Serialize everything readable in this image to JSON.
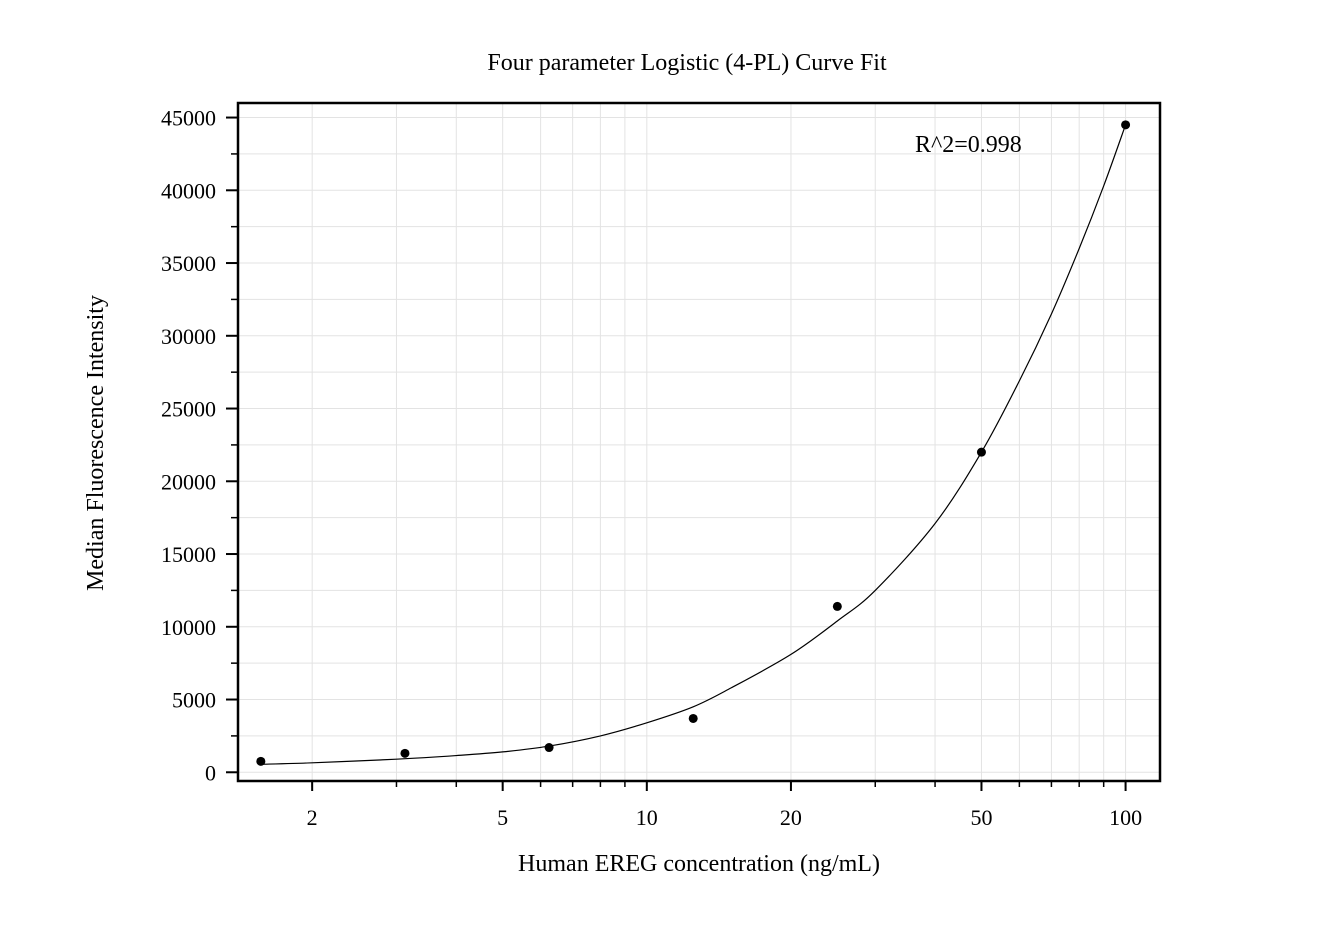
{
  "chart_data": {
    "type": "scatter",
    "title": "Four parameter Logistic (4-PL) Curve Fit",
    "xlabel": "Human EREG concentration (ng/mL)",
    "ylabel": "Median Fluorescence Intensity",
    "xscale": "log",
    "xlim": [
      1.4,
      118
    ],
    "ylim": [
      -600,
      46000
    ],
    "x_ticks": [
      2,
      5,
      10,
      20,
      50,
      100
    ],
    "x_tick_labels": [
      "2",
      "5",
      "10",
      "20",
      "50",
      "100"
    ],
    "y_ticks": [
      0,
      5000,
      10000,
      15000,
      20000,
      25000,
      30000,
      35000,
      40000,
      45000
    ],
    "y_tick_labels": [
      "0",
      "5000",
      "10000",
      "15000",
      "20000",
      "25000",
      "30000",
      "35000",
      "40000",
      "45000"
    ],
    "grid": true,
    "annotation": "R^2=0.998",
    "series": [
      {
        "kind": "points",
        "x": [
          1.5625,
          3.125,
          6.25,
          12.5,
          25,
          50,
          100
        ],
        "y": [
          750,
          1300,
          1700,
          3700,
          11400,
          22000,
          44500
        ],
        "color": "#000000"
      },
      {
        "kind": "fit_curve",
        "x": [
          1.5625,
          2,
          3,
          4,
          5,
          6.25,
          8,
          10,
          12.5,
          15,
          20,
          25,
          30,
          40,
          50,
          60,
          70,
          80,
          90,
          100
        ],
        "y": [
          550,
          650,
          900,
          1150,
          1400,
          1800,
          2500,
          3400,
          4500,
          5800,
          8100,
          10400,
          12500,
          17100,
          22000,
          26900,
          31500,
          36000,
          40300,
          44500
        ],
        "color": "#000000"
      }
    ]
  }
}
